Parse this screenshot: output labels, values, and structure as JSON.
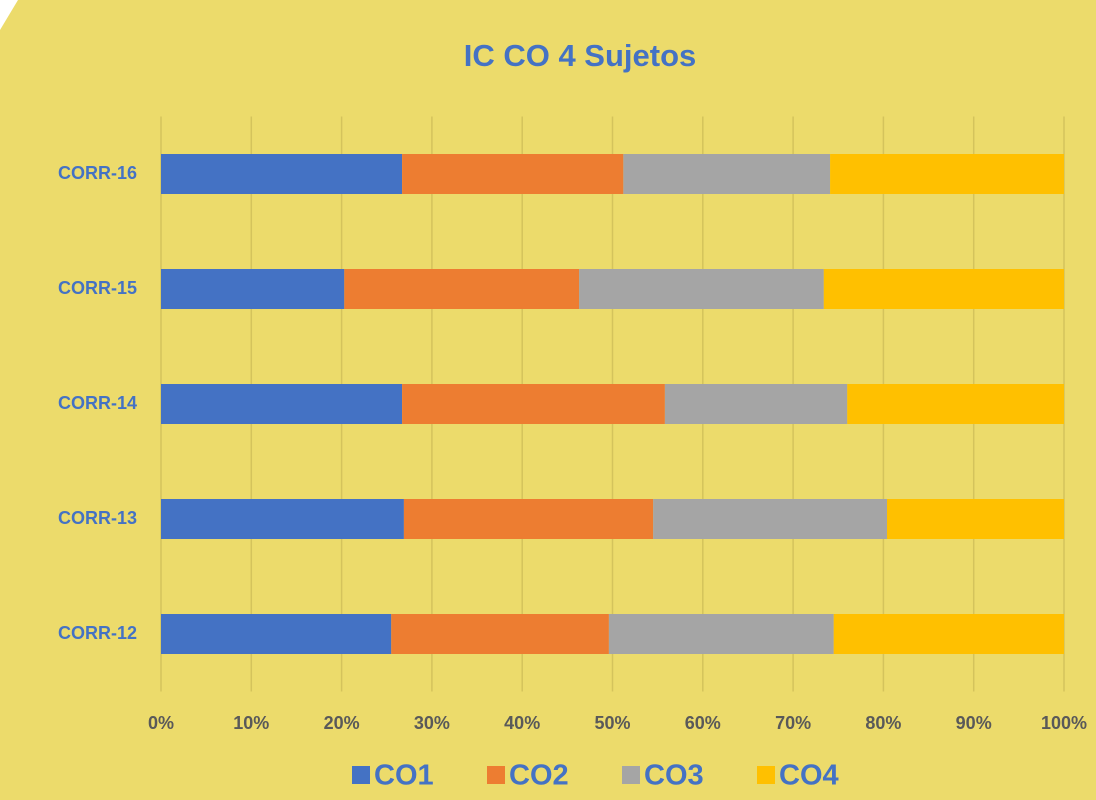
{
  "chart_data": {
    "type": "stacked_percent_bar_horizontal",
    "title": "IC  CO 4 Sujetos",
    "categories": [
      "CORR-12",
      "CORR-13",
      "CORR-14",
      "CORR-15",
      "CORR-16"
    ],
    "series": [
      {
        "name": "CO1",
        "color": "#4472c4",
        "values": [
          25.5,
          26.9,
          26.7,
          20.3,
          26.7
        ]
      },
      {
        "name": "CO2",
        "color": "#ed7d31",
        "values": [
          24.1,
          27.6,
          29.1,
          26.0,
          24.5
        ]
      },
      {
        "name": "CO3",
        "color": "#a5a5a5",
        "values": [
          24.9,
          25.9,
          20.2,
          27.1,
          22.9
        ]
      },
      {
        "name": "CO4",
        "color": "#ffc000",
        "values": [
          25.5,
          19.6,
          24.0,
          26.6,
          25.9
        ]
      }
    ],
    "xlim": [
      0,
      100
    ],
    "xticks": [
      {
        "value": 0,
        "label": "0%"
      },
      {
        "value": 10,
        "label": "10%"
      },
      {
        "value": 20,
        "label": "20%"
      },
      {
        "value": 30,
        "label": "30%"
      },
      {
        "value": 40,
        "label": "40%"
      },
      {
        "value": 50,
        "label": "50%"
      },
      {
        "value": 60,
        "label": "60%"
      },
      {
        "value": 70,
        "label": "70%"
      },
      {
        "value": 80,
        "label": "80%"
      },
      {
        "value": 90,
        "label": "90%"
      },
      {
        "value": 100,
        "label": "100%"
      }
    ],
    "grid": true,
    "legend": "bottom"
  }
}
